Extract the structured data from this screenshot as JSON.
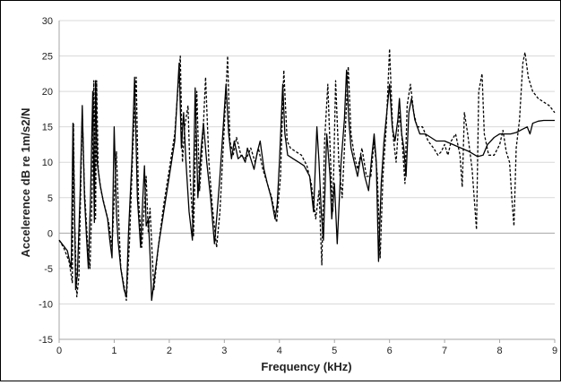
{
  "chart_data": {
    "type": "line",
    "title": "",
    "xlabel": "Frequency (kHz)",
    "ylabel": "Accelerence dB re 1m/s2/N",
    "xlim": [
      0,
      9
    ],
    "ylim": [
      -15,
      30
    ],
    "x_ticks": [
      "0",
      "1",
      "2",
      "3",
      "4",
      "5",
      "6",
      "7",
      "8",
      "9"
    ],
    "y_ticks": [
      "-15",
      "-10",
      "-5",
      "0",
      "5",
      "10",
      "15",
      "20",
      "25",
      "30"
    ],
    "grid": "horizontal",
    "legend": "none",
    "series": [
      {
        "style": "solid",
        "color": "#000000",
        "points": [
          [
            0,
            -1
          ],
          [
            0.05,
            -1.5
          ],
          [
            0.15,
            -2.5
          ],
          [
            0.22,
            -5
          ],
          [
            0.25,
            15.5
          ],
          [
            0.28,
            3
          ],
          [
            0.3,
            -8
          ],
          [
            0.33,
            -6
          ],
          [
            0.38,
            5
          ],
          [
            0.42,
            18
          ],
          [
            0.46,
            5
          ],
          [
            0.5,
            -1
          ],
          [
            0.53,
            -5
          ],
          [
            0.57,
            5
          ],
          [
            0.61,
            20
          ],
          [
            0.64,
            1.5
          ],
          [
            0.66,
            21.5
          ],
          [
            0.69,
            10
          ],
          [
            0.74,
            7
          ],
          [
            0.8,
            4.5
          ],
          [
            0.88,
            2
          ],
          [
            0.92,
            -1
          ],
          [
            0.96,
            -3.5
          ],
          [
            1.0,
            15
          ],
          [
            1.04,
            3
          ],
          [
            1.07,
            -1
          ],
          [
            1.12,
            -5
          ],
          [
            1.18,
            -8
          ],
          [
            1.22,
            -9
          ],
          [
            1.26,
            0
          ],
          [
            1.32,
            10
          ],
          [
            1.37,
            22
          ],
          [
            1.42,
            5
          ],
          [
            1.48,
            -2
          ],
          [
            1.52,
            5
          ],
          [
            1.55,
            9.5
          ],
          [
            1.58,
            1
          ],
          [
            1.62,
            2
          ],
          [
            1.65,
            -3
          ],
          [
            1.68,
            -9.5
          ],
          [
            1.72,
            -7
          ],
          [
            1.8,
            -2
          ],
          [
            1.9,
            3
          ],
          [
            2.0,
            8
          ],
          [
            2.1,
            13
          ],
          [
            2.18,
            24
          ],
          [
            2.22,
            12
          ],
          [
            2.26,
            17
          ],
          [
            2.3,
            10.5
          ],
          [
            2.36,
            3
          ],
          [
            2.42,
            -1
          ],
          [
            2.47,
            20.5
          ],
          [
            2.52,
            5
          ],
          [
            2.58,
            12
          ],
          [
            2.62,
            15.5
          ],
          [
            2.68,
            10
          ],
          [
            2.75,
            5
          ],
          [
            2.82,
            -1.5
          ],
          [
            2.86,
            2
          ],
          [
            2.92,
            8
          ],
          [
            2.98,
            15
          ],
          [
            3.03,
            21
          ],
          [
            3.08,
            14
          ],
          [
            3.13,
            10.5
          ],
          [
            3.18,
            13
          ],
          [
            3.25,
            10.5
          ],
          [
            3.32,
            11
          ],
          [
            3.38,
            10
          ],
          [
            3.42,
            12
          ],
          [
            3.48,
            10.5
          ],
          [
            3.54,
            9
          ],
          [
            3.6,
            11.5
          ],
          [
            3.65,
            13
          ],
          [
            3.72,
            9
          ],
          [
            3.78,
            7
          ],
          [
            3.85,
            5
          ],
          [
            3.92,
            2
          ],
          [
            3.96,
            4
          ],
          [
            4.0,
            10
          ],
          [
            4.06,
            21
          ],
          [
            4.1,
            14
          ],
          [
            4.15,
            11
          ],
          [
            4.25,
            10.5
          ],
          [
            4.35,
            10
          ],
          [
            4.45,
            9.5
          ],
          [
            4.55,
            8
          ],
          [
            4.62,
            3
          ],
          [
            4.68,
            15
          ],
          [
            4.72,
            10
          ],
          [
            4.76,
            3
          ],
          [
            4.8,
            -1
          ],
          [
            4.86,
            14
          ],
          [
            4.92,
            8
          ],
          [
            4.95,
            2
          ],
          [
            5.0,
            7
          ],
          [
            5.05,
            -1.5
          ],
          [
            5.12,
            10
          ],
          [
            5.18,
            16
          ],
          [
            5.22,
            23
          ],
          [
            5.26,
            16
          ],
          [
            5.3,
            12
          ],
          [
            5.36,
            10
          ],
          [
            5.42,
            8
          ],
          [
            5.48,
            11
          ],
          [
            5.55,
            8
          ],
          [
            5.62,
            6
          ],
          [
            5.68,
            11
          ],
          [
            5.72,
            14
          ],
          [
            5.76,
            10
          ],
          [
            5.8,
            -4
          ],
          [
            5.85,
            7
          ],
          [
            5.9,
            13
          ],
          [
            5.95,
            17
          ],
          [
            6.0,
            21
          ],
          [
            6.05,
            15
          ],
          [
            6.1,
            13
          ],
          [
            6.15,
            16
          ],
          [
            6.18,
            19
          ],
          [
            6.22,
            14
          ],
          [
            6.26,
            12
          ],
          [
            6.3,
            8
          ],
          [
            6.35,
            17
          ],
          [
            6.4,
            19
          ],
          [
            6.46,
            16
          ],
          [
            6.55,
            14
          ],
          [
            6.65,
            14
          ],
          [
            6.75,
            13.5
          ],
          [
            6.85,
            13
          ],
          [
            7.0,
            13
          ],
          [
            7.15,
            12.5
          ],
          [
            7.3,
            12
          ],
          [
            7.45,
            11.5
          ],
          [
            7.6,
            10.8
          ],
          [
            7.7,
            11
          ],
          [
            7.78,
            12.5
          ],
          [
            7.9,
            13.5
          ],
          [
            8.0,
            14
          ],
          [
            8.1,
            14
          ],
          [
            8.2,
            14
          ],
          [
            8.3,
            14.2
          ],
          [
            8.4,
            14.6
          ],
          [
            8.5,
            15
          ],
          [
            8.55,
            14
          ],
          [
            8.6,
            15.5
          ],
          [
            8.7,
            15.8
          ],
          [
            8.8,
            15.9
          ],
          [
            9.0,
            15.9
          ]
        ]
      },
      {
        "style": "dashed",
        "color": "#000000",
        "points": [
          [
            0,
            -1
          ],
          [
            0.08,
            -2
          ],
          [
            0.18,
            -4
          ],
          [
            0.22,
            -6
          ],
          [
            0.24,
            -7
          ],
          [
            0.26,
            15.5
          ],
          [
            0.28,
            2
          ],
          [
            0.32,
            -9
          ],
          [
            0.36,
            -6
          ],
          [
            0.42,
            17
          ],
          [
            0.46,
            6
          ],
          [
            0.52,
            -2
          ],
          [
            0.56,
            -5
          ],
          [
            0.6,
            6
          ],
          [
            0.63,
            21.5
          ],
          [
            0.66,
            2
          ],
          [
            0.68,
            21.5
          ],
          [
            0.71,
            9
          ],
          [
            0.76,
            6
          ],
          [
            0.82,
            4
          ],
          [
            0.9,
            1.5
          ],
          [
            0.96,
            -2
          ],
          [
            1.04,
            11.5
          ],
          [
            1.08,
            2
          ],
          [
            1.12,
            -5
          ],
          [
            1.18,
            -7.5
          ],
          [
            1.22,
            -9.5
          ],
          [
            1.28,
            -1
          ],
          [
            1.34,
            12
          ],
          [
            1.4,
            22
          ],
          [
            1.44,
            5
          ],
          [
            1.5,
            -2
          ],
          [
            1.55,
            4
          ],
          [
            1.58,
            8
          ],
          [
            1.62,
            0
          ],
          [
            1.65,
            3.5
          ],
          [
            1.72,
            -8
          ],
          [
            1.8,
            -2
          ],
          [
            1.9,
            4
          ],
          [
            2.0,
            9
          ],
          [
            2.1,
            14
          ],
          [
            2.2,
            25
          ],
          [
            2.24,
            10
          ],
          [
            2.28,
            15
          ],
          [
            2.34,
            18
          ],
          [
            2.38,
            8
          ],
          [
            2.44,
            -0.5
          ],
          [
            2.5,
            20
          ],
          [
            2.55,
            6
          ],
          [
            2.6,
            12
          ],
          [
            2.66,
            22
          ],
          [
            2.72,
            10
          ],
          [
            2.78,
            4
          ],
          [
            2.86,
            -2
          ],
          [
            2.92,
            3
          ],
          [
            3.0,
            15
          ],
          [
            3.06,
            25
          ],
          [
            3.1,
            13
          ],
          [
            3.16,
            11
          ],
          [
            3.22,
            13.5
          ],
          [
            3.3,
            11
          ],
          [
            3.4,
            10.5
          ],
          [
            3.48,
            12
          ],
          [
            3.56,
            10
          ],
          [
            3.62,
            12
          ],
          [
            3.7,
            9
          ],
          [
            3.78,
            7
          ],
          [
            3.86,
            5
          ],
          [
            3.95,
            1.5
          ],
          [
            4.02,
            8
          ],
          [
            4.08,
            23
          ],
          [
            4.14,
            13
          ],
          [
            4.2,
            12
          ],
          [
            4.3,
            11.5
          ],
          [
            4.4,
            11
          ],
          [
            4.5,
            9.5
          ],
          [
            4.58,
            7
          ],
          [
            4.66,
            2
          ],
          [
            4.72,
            6
          ],
          [
            4.77,
            -4.5
          ],
          [
            4.82,
            13
          ],
          [
            4.88,
            21
          ],
          [
            4.93,
            10
          ],
          [
            4.97,
            3
          ],
          [
            5.02,
            21.5
          ],
          [
            5.08,
            10
          ],
          [
            5.14,
            5
          ],
          [
            5.2,
            15
          ],
          [
            5.25,
            23.5
          ],
          [
            5.3,
            14
          ],
          [
            5.36,
            11
          ],
          [
            5.42,
            9
          ],
          [
            5.5,
            12
          ],
          [
            5.58,
            8
          ],
          [
            5.66,
            8
          ],
          [
            5.72,
            13
          ],
          [
            5.78,
            8
          ],
          [
            5.83,
            -3.5
          ],
          [
            5.88,
            8
          ],
          [
            5.94,
            15
          ],
          [
            6.0,
            26
          ],
          [
            6.06,
            14
          ],
          [
            6.12,
            10
          ],
          [
            6.18,
            17
          ],
          [
            6.22,
            14
          ],
          [
            6.28,
            7
          ],
          [
            6.32,
            18
          ],
          [
            6.38,
            21
          ],
          [
            6.44,
            17
          ],
          [
            6.5,
            15
          ],
          [
            6.6,
            15
          ],
          [
            6.7,
            13
          ],
          [
            6.8,
            12
          ],
          [
            6.88,
            11
          ],
          [
            6.94,
            11.5
          ],
          [
            7.0,
            12.5
          ],
          [
            7.06,
            11
          ],
          [
            7.12,
            13
          ],
          [
            7.2,
            14
          ],
          [
            7.28,
            11
          ],
          [
            7.32,
            6.5
          ],
          [
            7.36,
            17
          ],
          [
            7.42,
            14
          ],
          [
            7.5,
            9
          ],
          [
            7.58,
            0.5
          ],
          [
            7.62,
            20
          ],
          [
            7.68,
            22.5
          ],
          [
            7.72,
            14
          ],
          [
            7.8,
            11
          ],
          [
            7.9,
            11
          ],
          [
            8.0,
            12.5
          ],
          [
            8.06,
            14.5
          ],
          [
            8.12,
            11.5
          ],
          [
            8.18,
            10
          ],
          [
            8.22,
            5
          ],
          [
            8.26,
            1
          ],
          [
            8.3,
            12
          ],
          [
            8.36,
            16
          ],
          [
            8.42,
            24
          ],
          [
            8.46,
            25.5
          ],
          [
            8.52,
            22
          ],
          [
            8.6,
            20
          ],
          [
            8.7,
            19
          ],
          [
            8.8,
            18.5
          ],
          [
            8.9,
            18
          ],
          [
            9.0,
            17
          ]
        ]
      }
    ]
  }
}
